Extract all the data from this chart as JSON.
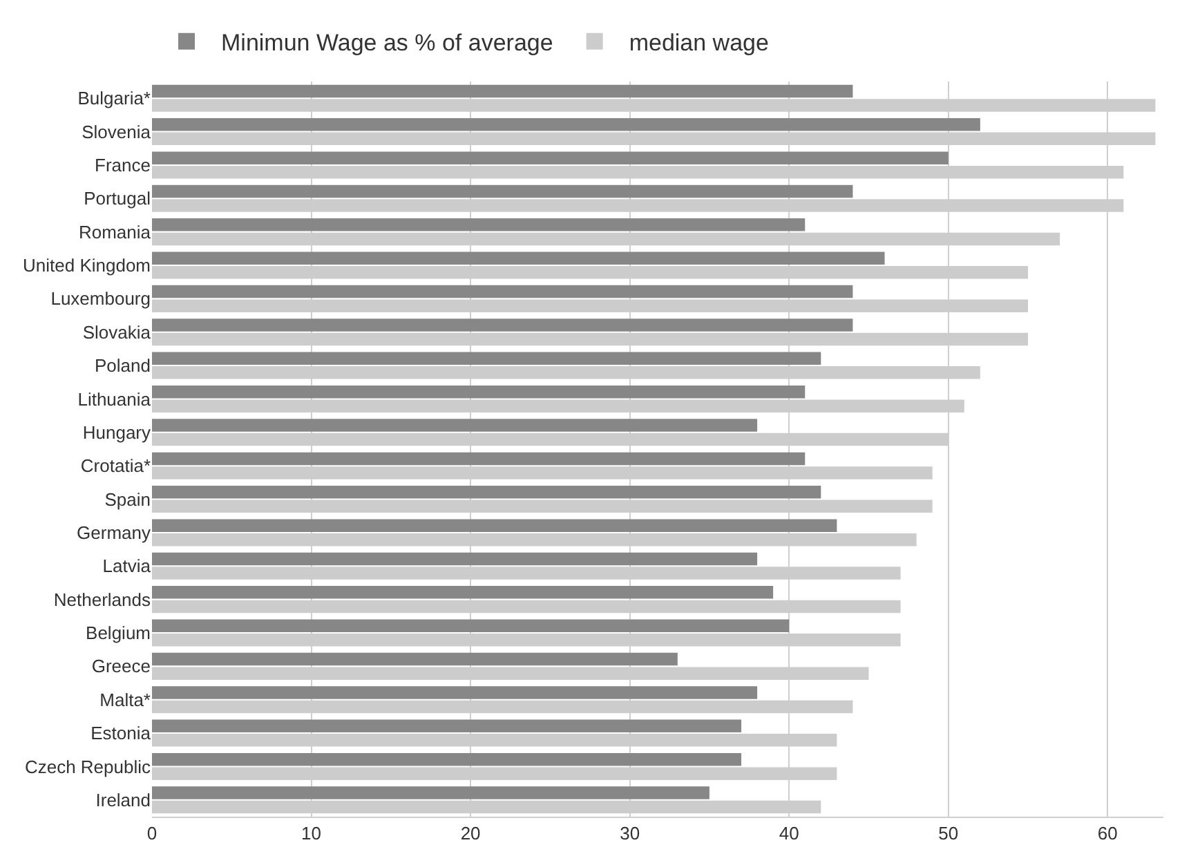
{
  "chart_data": {
    "type": "bar",
    "orientation": "horizontal",
    "categories": [
      "Bulgaria*",
      "Slovenia",
      "France",
      "Portugal",
      "Romania",
      "United Kingdom",
      "Luxembourg",
      "Slovakia",
      "Poland",
      "Lithuania",
      "Hungary",
      "Crotatia*",
      "Spain",
      "Germany",
      "Latvia",
      "Netherlands",
      "Belgium",
      "Greece",
      "Malta*",
      "Estonia",
      "Czech Republic",
      "Ireland"
    ],
    "series": [
      {
        "name": "Minimun Wage as % of average",
        "color": "#878787",
        "values": [
          44,
          52,
          50,
          44,
          41,
          46,
          44,
          44,
          42,
          41,
          38,
          41,
          42,
          43,
          38,
          39,
          40,
          33,
          38,
          37,
          37,
          35
        ]
      },
      {
        "name": "median wage",
        "color": "#cccccc",
        "values": [
          63,
          63,
          61,
          61,
          57,
          55,
          55,
          55,
          52,
          51,
          50,
          49,
          49,
          48,
          47,
          47,
          47,
          45,
          44,
          43,
          43,
          42
        ]
      }
    ],
    "xlim": [
      0,
      63.5
    ],
    "xticks": [
      0,
      10,
      20,
      30,
      40,
      50,
      60
    ],
    "grid": "x",
    "legend": "top left"
  }
}
